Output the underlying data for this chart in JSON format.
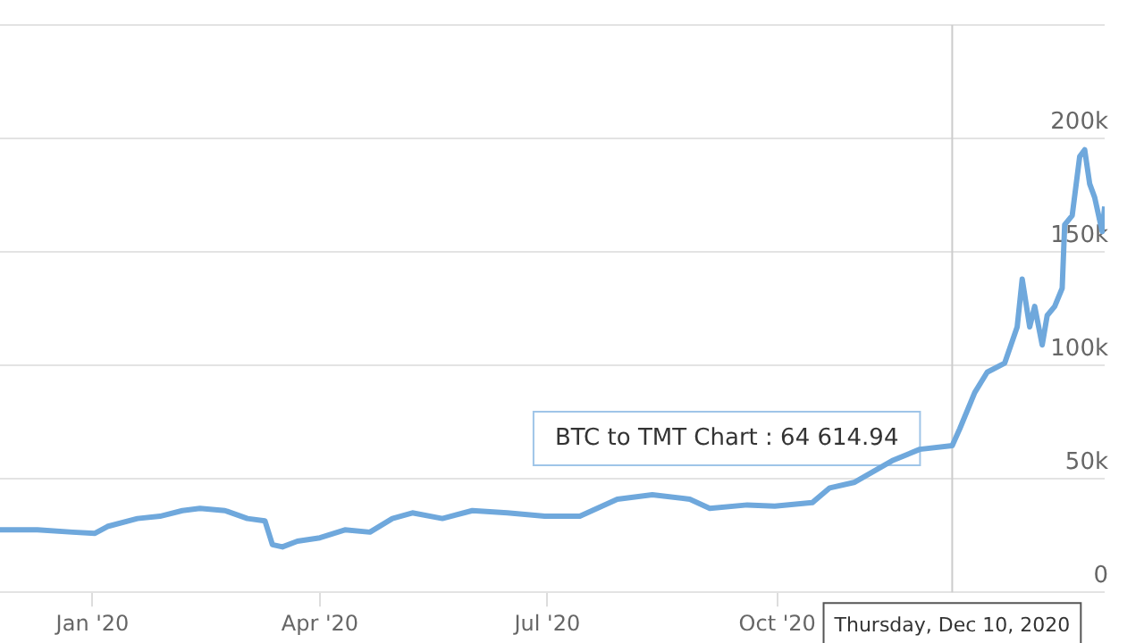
{
  "chart_data": {
    "type": "line",
    "x": [
      "2019-11-25",
      "2019-12-10",
      "2019-12-24",
      "2020-01-02",
      "2020-01-07",
      "2020-01-19",
      "2020-01-28",
      "2020-02-06",
      "2020-02-13",
      "2020-02-23",
      "2020-03-03",
      "2020-03-10",
      "2020-03-13",
      "2020-03-17",
      "2020-03-23",
      "2020-04-01",
      "2020-04-11",
      "2020-04-21",
      "2020-04-30",
      "2020-05-08",
      "2020-05-20",
      "2020-06-01",
      "2020-06-15",
      "2020-06-30",
      "2020-07-14",
      "2020-07-29",
      "2020-08-12",
      "2020-08-27",
      "2020-09-04",
      "2020-09-19",
      "2020-09-30",
      "2020-10-15",
      "2020-10-22",
      "2020-11-01",
      "2020-11-16",
      "2020-11-27",
      "2020-12-10",
      "2020-12-13",
      "2020-12-19",
      "2020-12-24",
      "2020-12-31",
      "2021-01-05",
      "2021-01-07",
      "2021-01-10",
      "2021-01-12",
      "2021-01-15",
      "2021-01-17",
      "2021-01-20",
      "2021-01-23",
      "2021-01-24",
      "2021-01-27",
      "2021-01-30",
      "2021-02-01",
      "2021-02-03",
      "2021-02-05",
      "2021-02-08",
      "2021-02-09"
    ],
    "series": [
      {
        "color": "#6fa8dc",
        "values": [
          27500,
          27500,
          26500,
          26000,
          29000,
          32500,
          33500,
          36000,
          37000,
          36000,
          32500,
          31500,
          21000,
          20000,
          22500,
          24000,
          27500,
          26500,
          32500,
          35000,
          32500,
          36000,
          35000,
          33500,
          33500,
          41000,
          43000,
          41000,
          37000,
          38500,
          38000,
          39500,
          46000,
          48500,
          58000,
          63000,
          64614.94,
          72000,
          88000,
          97000,
          101000,
          117000,
          138000,
          117000,
          126000,
          109000,
          122000,
          126000,
          134000,
          162000,
          166000,
          192000,
          195000,
          180000,
          174000,
          159000,
          170000
        ]
      }
    ],
    "xlim": [
      "2019-11-25",
      "2021-02-09"
    ],
    "xticks": [
      {
        "value": "2020-01-01",
        "label": "Jan '20"
      },
      {
        "value": "2020-04-01",
        "label": "Apr '20"
      },
      {
        "value": "2020-07-01",
        "label": "Jul '20"
      },
      {
        "value": "2020-10-01",
        "label": "Oct '20"
      }
    ],
    "ylim": [
      0,
      250000
    ],
    "yticks": [
      {
        "value": 0,
        "label": "0"
      },
      {
        "value": 50000,
        "label": "50k"
      },
      {
        "value": 100000,
        "label": "100k"
      },
      {
        "value": 150000,
        "label": "150k"
      },
      {
        "value": 200000,
        "label": "200k"
      },
      {
        "value": 250000,
        "label": null
      }
    ],
    "grid": "y",
    "marker": "none",
    "line_style": "solid",
    "legend": false,
    "ref_lines": [
      {
        "axis": "x",
        "value": "2020-12-10",
        "color": "#cccccc",
        "label": "Thursday, Dec 10, 2020"
      }
    ],
    "annotations": [
      {
        "text": "BTC to TMT Chart : 64 614.94",
        "x": "2020-12-10",
        "y": 64614.94
      }
    ]
  }
}
